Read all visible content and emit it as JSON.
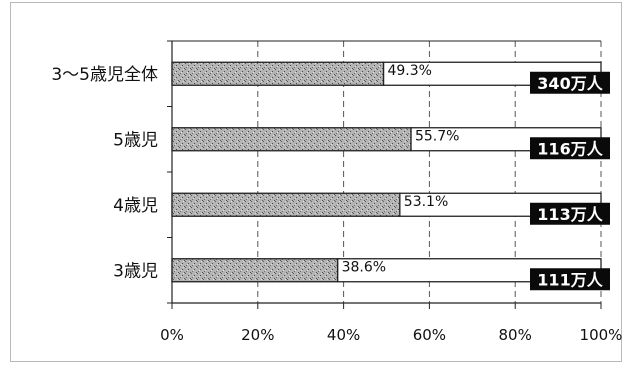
{
  "chart_data": {
    "type": "bar",
    "orientation": "horizontal",
    "stacked_percent": true,
    "categories": [
      "3～5歳児全体",
      "5歳児",
      "4歳児",
      "3歳児"
    ],
    "values": [
      49.3,
      55.7,
      53.1,
      38.6
    ],
    "value_labels": [
      "49.3%",
      "55.7%",
      "53.1%",
      "38.6%"
    ],
    "totals": [
      "340万人",
      "116万人",
      "113万人",
      "111万人"
    ],
    "xlim": [
      0,
      100
    ],
    "xticks": [
      0,
      20,
      40,
      60,
      80,
      100
    ],
    "xtick_labels": [
      "0%",
      "20%",
      "40%",
      "60%",
      "80%",
      "100%"
    ],
    "grid": "vertical dashed",
    "colors": {
      "filled": "#b0b0b0",
      "remainder": "#ffffff",
      "badge": "#0a0a0a"
    }
  }
}
